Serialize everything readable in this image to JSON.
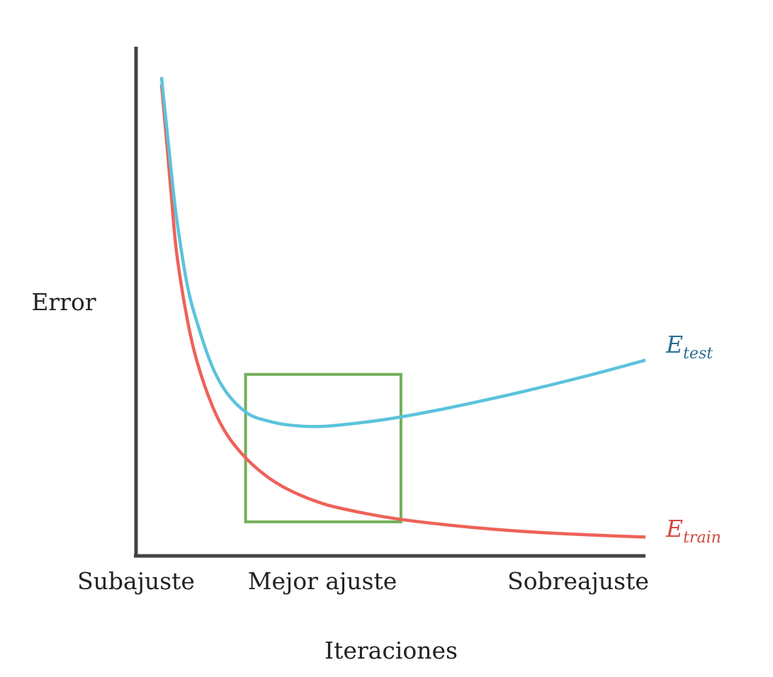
{
  "chart_data": {
    "type": "line",
    "title": "",
    "xlabel": "Iteraciones",
    "ylabel": "Error",
    "xlim": [
      0,
      1
    ],
    "ylim": [
      0,
      1
    ],
    "grid": false,
    "legend": "inline-right",
    "x_ticks": [
      {
        "x": 0.0,
        "label": "Subajuste"
      },
      {
        "x": 0.36,
        "label": "Mejor ajuste"
      },
      {
        "x": 1.0,
        "label": "Sobreajuste"
      }
    ],
    "x": [
      0.05,
      0.06,
      0.07,
      0.08,
      0.1,
      0.12,
      0.15,
      0.18,
      0.22,
      0.26,
      0.3,
      0.35,
      0.4,
      0.5,
      0.6,
      0.7,
      0.8,
      0.9,
      1.0
    ],
    "series": [
      {
        "name": "test",
        "color": "#5bc3dc",
        "values": [
          0.97,
          0.87,
          0.77,
          0.68,
          0.55,
          0.47,
          0.38,
          0.325,
          0.285,
          0.27,
          0.262,
          0.259,
          0.262,
          0.275,
          0.294,
          0.316,
          0.34,
          0.366,
          0.394
        ]
      },
      {
        "name": "train",
        "color": "#ee6259",
        "values": [
          0.955,
          0.84,
          0.72,
          0.61,
          0.48,
          0.39,
          0.3,
          0.24,
          0.19,
          0.155,
          0.13,
          0.108,
          0.093,
          0.073,
          0.06,
          0.05,
          0.043,
          0.038,
          0.034
        ]
      }
    ],
    "highlight_box": {
      "x_range": [
        0.215,
        0.52
      ],
      "y_range": [
        0.065,
        0.365
      ],
      "color": "#72b05a"
    },
    "series_labels": [
      {
        "base": "E",
        "sub": "test",
        "color": "#2a6e91",
        "y": 0.41
      },
      {
        "base": "E",
        "sub": "train",
        "color": "#d14a41",
        "y": 0.05
      }
    ]
  }
}
